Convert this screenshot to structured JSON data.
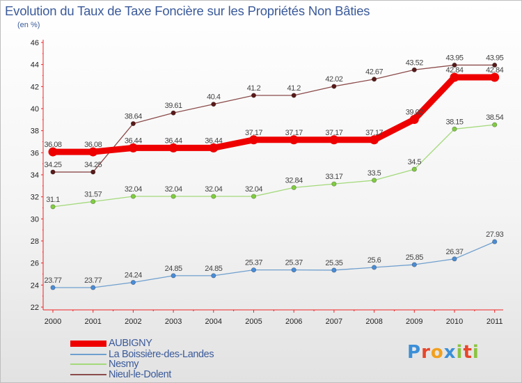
{
  "chart_data": {
    "type": "line",
    "title": "Evolution du Taux de Taxe Foncière sur les Propriétés Non Bâties",
    "ylabel": "(en %)",
    "xlabel": "",
    "categories": [
      "2000",
      "2001",
      "2002",
      "2003",
      "2004",
      "2005",
      "2006",
      "2007",
      "2008",
      "2009",
      "2010",
      "2011"
    ],
    "ylim": [
      22,
      46
    ],
    "yticks": [
      22,
      24,
      26,
      28,
      30,
      32,
      34,
      36,
      38,
      40,
      42,
      44,
      46
    ],
    "grid": false,
    "legend_position": "bottom-left",
    "series": [
      {
        "name": "AUBIGNY",
        "color": "#ee0000",
        "emphasis": true,
        "values": [
          36.08,
          36.08,
          36.44,
          36.44,
          36.44,
          37.17,
          37.17,
          37.17,
          37.17,
          39.02,
          42.84,
          42.84
        ],
        "labels": [
          "36.08",
          "36.08",
          "36.44",
          "36.44",
          "36.44",
          "37.17",
          "37.17",
          "37.17",
          "37.17",
          "39.02",
          "42.84",
          "42.84"
        ]
      },
      {
        "name": "La Boissière-des-Landes",
        "color": "#6f9fce",
        "point_color": "#4a8cd6",
        "values": [
          23.77,
          23.77,
          24.24,
          24.85,
          24.85,
          25.37,
          25.37,
          25.35,
          25.6,
          25.85,
          26.37,
          27.93
        ],
        "labels": [
          "23.77",
          "23.77",
          "24.24",
          "24.85",
          "24.85",
          "25.37",
          "25.37",
          "25.35",
          "25.6",
          "25.85",
          "26.37",
          "27.93"
        ]
      },
      {
        "name": "Nesmy",
        "color": "#a3d97a",
        "point_color": "#80cc40",
        "values": [
          31.1,
          31.57,
          32.04,
          32.04,
          32.04,
          32.04,
          32.84,
          33.17,
          33.5,
          34.5,
          38.15,
          38.54
        ],
        "labels": [
          "31.1",
          "31.57",
          "32.04",
          "32.04",
          "32.04",
          "32.04",
          "32.84",
          "33.17",
          "33.5",
          "34.5",
          "38.15",
          "38.54"
        ]
      },
      {
        "name": "Nieul-le-Dolent",
        "color": "#8b4a4a",
        "point_color": "#5a1a1a",
        "values": [
          34.25,
          34.25,
          38.64,
          39.61,
          40.4,
          41.2,
          41.2,
          42.02,
          42.67,
          43.52,
          43.95,
          43.95
        ],
        "labels": [
          "34.25",
          "34.25",
          "38.64",
          "39.61",
          "40.4",
          "41.2",
          "41.2",
          "42.02",
          "42.67",
          "43.52",
          "43.95",
          "43.95"
        ]
      }
    ],
    "watermark": "Proxiti"
  },
  "colors": {
    "title": "#3a5a9a",
    "axis": "#ee2222",
    "tick_text": "#222222",
    "data_label": "#444444"
  }
}
